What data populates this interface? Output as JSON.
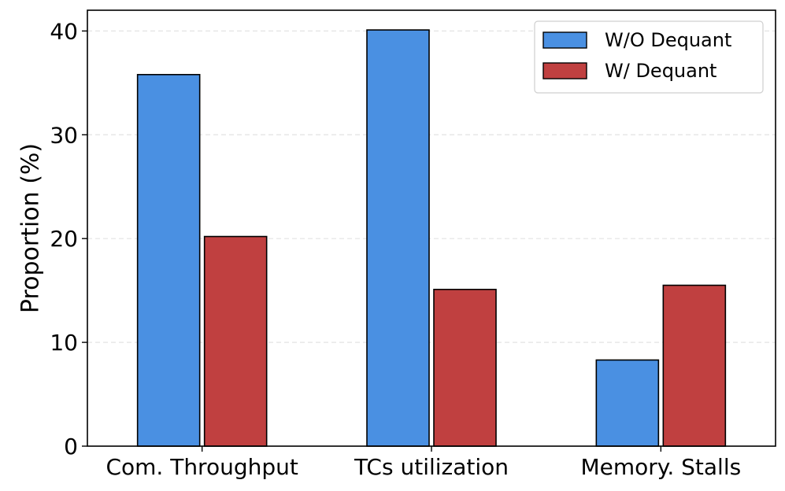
{
  "chart_data": {
    "type": "bar",
    "title": "",
    "xlabel": "",
    "ylabel": "Proportion (%)",
    "ylim": [
      0,
      42
    ],
    "yticks": [
      0,
      10,
      20,
      30,
      40
    ],
    "grid": "horizontal-dashed",
    "legend_position": "top-right",
    "categories": [
      "Com. Throughput",
      "TCs utilization",
      "Memory. Stalls"
    ],
    "series": [
      {
        "name": "W/O Dequant",
        "color": "#4a90e2",
        "values": [
          35.8,
          40.1,
          8.3
        ]
      },
      {
        "name": "W/ Dequant",
        "color": "#c04040",
        "values": [
          20.2,
          15.1,
          15.5
        ]
      }
    ]
  }
}
